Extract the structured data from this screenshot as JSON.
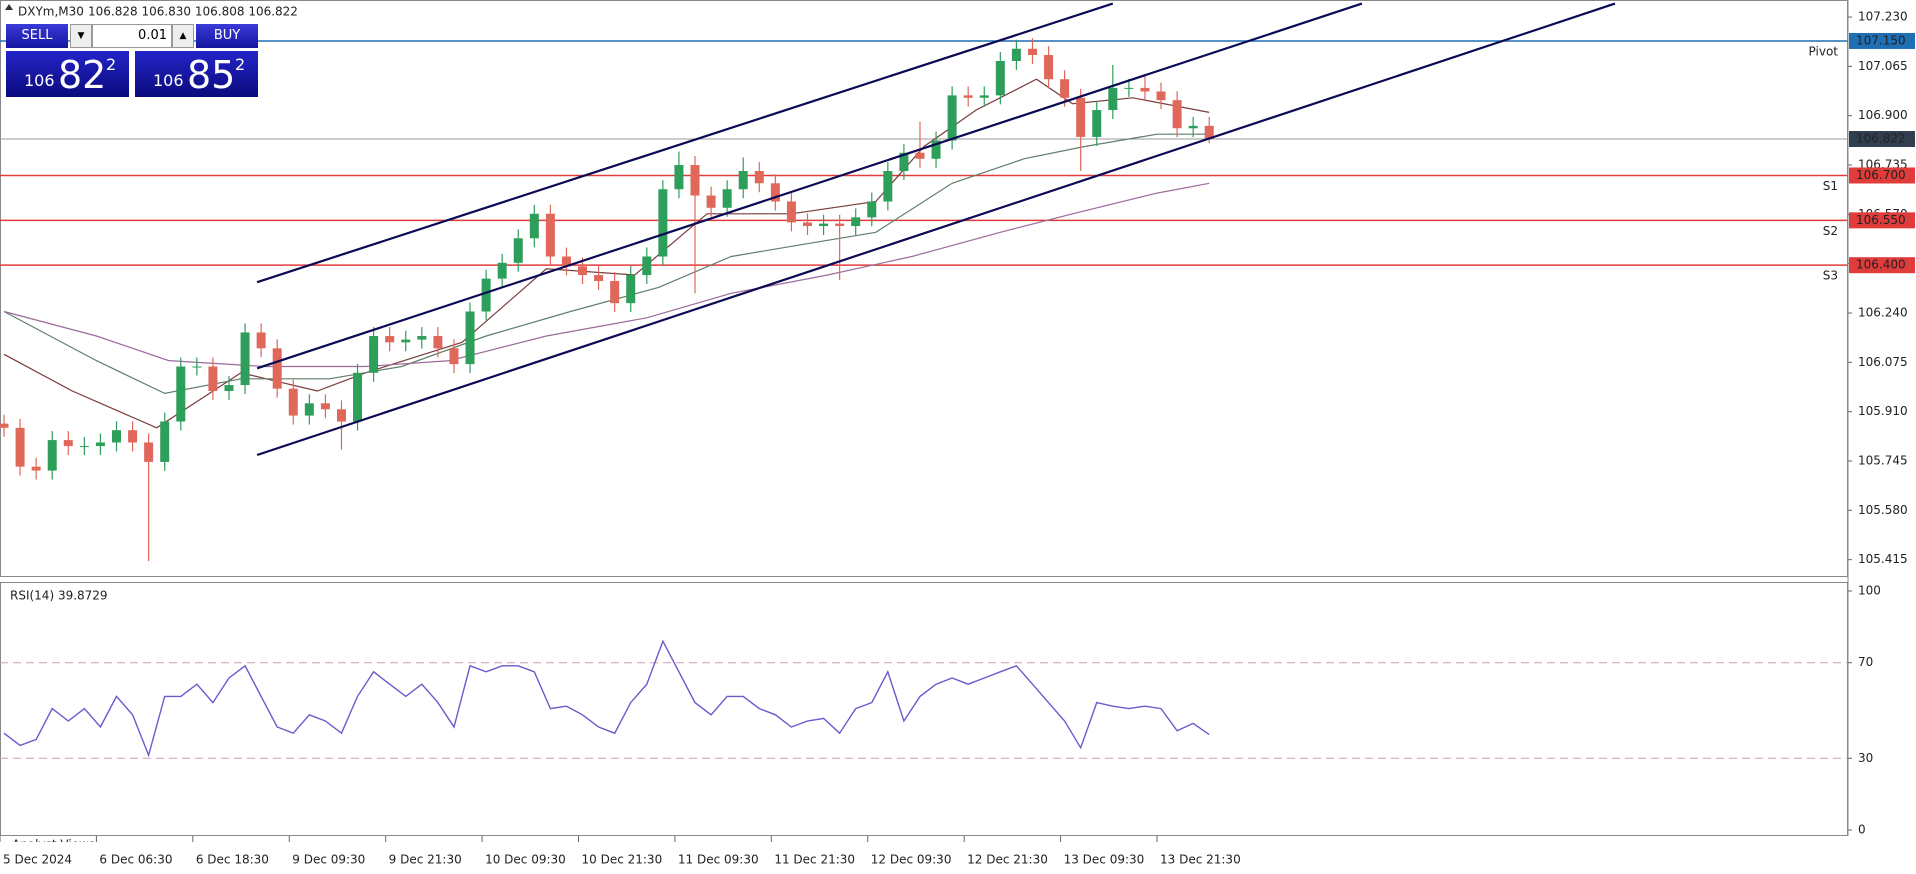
{
  "header": {
    "symbol": "DXYm,M30",
    "ohlc": "106.828 106.830 106.808 106.822"
  },
  "trade_panel": {
    "sell": "SELL",
    "lot": "0.01",
    "buy": "BUY",
    "bid_big": "106",
    "bid_main": "82",
    "bid_sup": "2",
    "ask_big": "106",
    "ask_main": "85",
    "ask_sup": "2"
  },
  "footer": "Analyst Views",
  "chart_data": [
    {
      "type": "candlestick",
      "up_color": "#2e9e5b",
      "down_color": "#e0685a",
      "x": [
        0,
        4,
        8,
        12,
        16,
        20,
        24,
        28,
        32,
        36,
        40,
        44,
        48,
        52,
        56,
        60,
        64,
        68,
        72,
        76,
        80,
        84,
        88,
        92,
        96,
        100,
        104,
        108,
        112,
        116,
        120,
        124,
        128,
        132,
        136,
        140,
        144,
        148,
        152,
        156,
        160,
        164,
        168,
        172,
        176,
        180,
        184,
        188,
        192,
        196,
        200,
        204,
        208,
        212,
        216,
        220,
        224,
        228,
        232,
        236,
        240,
        244,
        248,
        252,
        256,
        260,
        264,
        268,
        272,
        276,
        280,
        284,
        288,
        292,
        296,
        300
      ],
      "open": [
        105.87,
        105.856,
        105.726,
        105.713,
        105.815,
        105.795,
        105.795,
        105.807,
        105.848,
        105.807,
        105.742,
        105.877,
        106.061,
        106.061,
        105.979,
        105.999,
        106.175,
        106.122,
        105.987,
        105.897,
        105.938,
        105.918,
        105.877,
        106.04,
        106.163,
        106.142,
        106.151,
        106.163,
        106.122,
        106.069,
        106.245,
        106.355,
        106.408,
        106.49,
        106.572,
        106.429,
        106.396,
        106.367,
        106.347,
        106.273,
        106.367,
        106.429,
        106.654,
        106.735,
        106.633,
        106.592,
        106.654,
        106.715,
        106.674,
        106.613,
        106.543,
        106.531,
        106.539,
        106.531,
        106.56,
        106.613,
        106.715,
        106.776,
        106.756,
        106.817,
        106.968,
        106.96,
        106.968,
        107.083,
        107.124,
        107.103,
        107.022,
        106.96,
        106.829,
        106.919,
        106.993,
        106.993,
        106.981,
        106.952,
        106.858,
        106.866
      ],
      "high": [
        105.9,
        105.886,
        105.756,
        105.845,
        105.845,
        105.825,
        105.837,
        105.878,
        105.878,
        105.837,
        105.907,
        106.091,
        106.091,
        106.091,
        106.029,
        106.205,
        106.205,
        106.152,
        106.017,
        105.968,
        105.968,
        105.948,
        106.07,
        106.193,
        106.193,
        106.181,
        106.193,
        106.193,
        106.152,
        106.275,
        106.385,
        106.438,
        106.52,
        106.602,
        106.602,
        106.459,
        106.426,
        106.397,
        106.377,
        106.397,
        106.459,
        106.684,
        106.78,
        106.765,
        106.663,
        106.684,
        106.76,
        106.745,
        106.704,
        106.643,
        106.573,
        106.569,
        106.569,
        106.59,
        106.643,
        106.745,
        106.806,
        106.88,
        106.847,
        106.998,
        106.998,
        106.998,
        107.113,
        107.154,
        107.16,
        107.133,
        107.052,
        106.99,
        106.949,
        107.07,
        107.023,
        107.04,
        107.011,
        106.982,
        106.896,
        106.896
      ],
      "low": [
        105.826,
        105.696,
        105.683,
        105.683,
        105.765,
        105.765,
        105.765,
        105.777,
        105.777,
        105.41,
        105.712,
        105.847,
        106.031,
        105.949,
        105.949,
        105.969,
        106.092,
        105.957,
        105.867,
        105.867,
        105.888,
        105.783,
        105.847,
        106.01,
        106.112,
        106.112,
        106.121,
        106.092,
        106.039,
        106.039,
        106.215,
        106.325,
        106.378,
        106.46,
        106.399,
        106.366,
        106.337,
        106.317,
        106.243,
        106.243,
        106.337,
        106.399,
        106.624,
        106.306,
        106.562,
        106.562,
        106.624,
        106.644,
        106.583,
        106.513,
        106.501,
        106.501,
        106.35,
        106.501,
        106.53,
        106.583,
        106.685,
        106.726,
        106.726,
        106.787,
        106.93,
        106.93,
        106.938,
        107.053,
        107.073,
        106.992,
        106.93,
        106.715,
        106.799,
        106.889,
        106.963,
        106.951,
        106.922,
        106.828,
        106.828,
        106.808
      ],
      "close": [
        105.856,
        105.726,
        105.713,
        105.815,
        105.795,
        105.795,
        105.807,
        105.848,
        105.807,
        105.742,
        105.877,
        106.061,
        106.061,
        105.979,
        105.999,
        106.175,
        106.122,
        105.987,
        105.897,
        105.938,
        105.918,
        105.877,
        106.04,
        106.163,
        106.142,
        106.151,
        106.163,
        106.122,
        106.069,
        106.245,
        106.355,
        106.408,
        106.49,
        106.572,
        106.429,
        106.396,
        106.367,
        106.347,
        106.273,
        106.367,
        106.429,
        106.654,
        106.735,
        106.633,
        106.592,
        106.654,
        106.715,
        106.674,
        106.613,
        106.543,
        106.531,
        106.539,
        106.531,
        106.56,
        106.613,
        106.715,
        106.776,
        106.756,
        106.817,
        106.968,
        106.96,
        106.968,
        107.083,
        107.124,
        107.103,
        107.022,
        106.96,
        106.829,
        106.919,
        106.993,
        106.993,
        106.981,
        106.952,
        106.858,
        106.866,
        106.822
      ],
      "moving_averages": [
        {
          "color": "#7a3b3b",
          "x": [
            0,
            17,
            38,
            59,
            78,
            90,
            114,
            135,
            157,
            175,
            196,
            217,
            229,
            242,
            257,
            266,
            281,
            300
          ],
          "values": [
            106.102,
            105.979,
            105.856,
            106.04,
            105.979,
            106.04,
            106.142,
            106.388,
            106.367,
            106.572,
            106.572,
            106.613,
            106.797,
            106.919,
            107.022,
            106.94,
            106.96,
            106.911
          ]
        },
        {
          "color": "#5f7f6a",
          "x": [
            0,
            23,
            40,
            59,
            81,
            99,
            120,
            141,
            163,
            181,
            199,
            217,
            236,
            254,
            269,
            287,
            300
          ],
          "values": [
            106.245,
            106.081,
            105.971,
            106.02,
            106.02,
            106.061,
            106.163,
            106.245,
            106.326,
            106.429,
            106.47,
            106.51,
            106.674,
            106.756,
            106.797,
            106.838,
            106.838
          ]
        },
        {
          "color": "#9b6b9b",
          "x": [
            0,
            23,
            41,
            65,
            90,
            111,
            135,
            160,
            181,
            205,
            226,
            248,
            266,
            287,
            300
          ],
          "values": [
            106.245,
            106.163,
            106.081,
            106.061,
            106.061,
            106.081,
            106.163,
            106.224,
            106.306,
            106.367,
            106.429,
            106.51,
            106.572,
            106.641,
            106.674
          ]
        }
      ],
      "trendlines": [
        {
          "color": "#0b0b55",
          "x": [
            63,
            276
          ],
          "values": [
            106.343,
            107.275
          ]
        },
        {
          "color": "#0b0b55",
          "x": [
            63,
            338
          ],
          "values": [
            106.055,
            107.275
          ]
        },
        {
          "color": "#0b0b55",
          "x": [
            63,
            401
          ],
          "values": [
            105.765,
            107.275
          ]
        }
      ],
      "levels": [
        {
          "name": "Pivot",
          "value": 107.15,
          "label": "107.150",
          "color": "#1f6fb4"
        },
        {
          "name": "S1",
          "value": 106.7,
          "label": "106.700",
          "color": "#e03c3c"
        },
        {
          "name": "S2",
          "value": 106.55,
          "label": "106.550",
          "color": "#e03c3c"
        },
        {
          "name": "S3",
          "value": 106.4,
          "label": "106.400",
          "color": "#e03c3c"
        }
      ],
      "last_price": {
        "value": 106.822,
        "label": "106.822",
        "color": "#2f3f4f"
      },
      "xlim": [
        -1,
        459
      ],
      "ylim": [
        105.357,
        107.287
      ],
      "yticks": [
        {
          "value": 107.23,
          "label": "107.230"
        },
        107.065,
        {
          "value": 106.9,
          "label": "106.900"
        },
        106.735,
        {
          "value": 106.57,
          "label": "106.570"
        },
        106.405,
        {
          "value": 106.24,
          "label": "106.240"
        },
        106.075,
        {
          "value": 105.91,
          "label": "105.910"
        },
        105.745,
        {
          "value": 105.58,
          "label": "105.580"
        },
        105.415
      ],
      "xticks": [
        {
          "value": -1,
          "label": "5 Dec 2024"
        },
        {
          "value": 23,
          "label": "6 Dec 06:30"
        },
        {
          "value": 47,
          "label": "6 Dec 18:30"
        },
        {
          "value": 71,
          "label": "9 Dec 09:30"
        },
        {
          "value": 95,
          "label": "9 Dec 21:30"
        },
        {
          "value": 119,
          "label": "10 Dec 09:30"
        },
        {
          "value": 143,
          "label": "10 Dec 21:30"
        },
        {
          "value": 167,
          "label": "11 Dec 09:30"
        },
        {
          "value": 191,
          "label": "11 Dec 21:30"
        },
        {
          "value": 215,
          "label": "12 Dec 09:30"
        },
        {
          "value": 239,
          "label": "12 Dec 21:30"
        },
        {
          "value": 263,
          "label": "13 Dec 09:30"
        },
        {
          "value": 287,
          "label": "13 Dec 21:30"
        }
      ]
    },
    {
      "type": "line",
      "title": "RSI(14) 39.8729",
      "color": "#6a5acd",
      "x": [
        0,
        4,
        8,
        12,
        16,
        20,
        24,
        28,
        32,
        36,
        40,
        44,
        48,
        52,
        56,
        60,
        64,
        68,
        72,
        76,
        80,
        84,
        88,
        92,
        96,
        100,
        104,
        108,
        112,
        116,
        120,
        124,
        128,
        132,
        136,
        140,
        144,
        148,
        152,
        156,
        160,
        164,
        168,
        172,
        176,
        180,
        184,
        188,
        192,
        196,
        200,
        204,
        208,
        212,
        216,
        220,
        224,
        228,
        232,
        236,
        240,
        244,
        248,
        252,
        256,
        260,
        264,
        268,
        272,
        276,
        280,
        284,
        288,
        292,
        296,
        300
      ],
      "values": [
        40.5,
        35.4,
        37.9,
        50.8,
        45.6,
        50.8,
        43.1,
        55.9,
        48.2,
        31.3,
        55.9,
        55.9,
        61.0,
        53.3,
        63.6,
        68.7,
        55.9,
        43.1,
        40.5,
        48.2,
        45.6,
        40.5,
        55.9,
        66.2,
        61.0,
        55.9,
        61.0,
        53.3,
        43.1,
        68.7,
        66.2,
        68.7,
        68.7,
        66.2,
        50.8,
        51.8,
        48.2,
        43.1,
        40.5,
        53.3,
        61.0,
        79.0,
        66.2,
        53.3,
        48.2,
        55.9,
        55.9,
        50.8,
        48.2,
        43.1,
        45.6,
        46.7,
        40.5,
        50.8,
        53.3,
        66.2,
        45.6,
        55.9,
        61.0,
        63.6,
        61.0,
        63.6,
        66.2,
        68.7,
        61.0,
        53.3,
        45.6,
        34.4,
        53.3,
        51.8,
        50.8,
        51.8,
        50.8,
        41.5,
        44.6,
        39.9
      ],
      "ylim": [
        0,
        100
      ],
      "yticks": [
        0,
        30,
        70,
        100
      ],
      "dashed_levels": [
        30,
        70
      ],
      "dash_color": "#c9a0b8"
    }
  ]
}
